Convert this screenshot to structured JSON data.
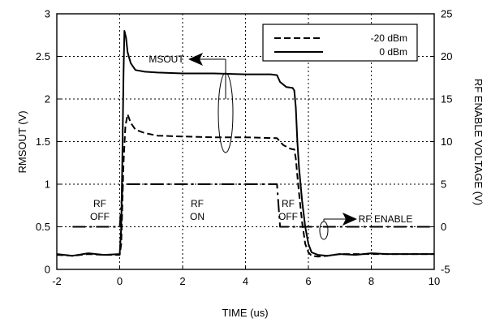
{
  "chart_data": {
    "type": "line",
    "title": "",
    "xlabel": "TIME (us)",
    "ylabel_left": "RMSOUT (V)",
    "ylabel_right": "RF ENABLE VOLTAGE (V)",
    "xlim": [
      -2,
      10
    ],
    "ylim_left": [
      0,
      3
    ],
    "ylim_right": [
      -5,
      25
    ],
    "x_ticks": [
      -2,
      0,
      2,
      4,
      6,
      8,
      10
    ],
    "x_tick_labels": [
      "-2",
      "0",
      "2",
      "4",
      "6",
      "8",
      "10"
    ],
    "y_left_ticks": [
      0,
      0.5,
      1,
      1.5,
      2,
      2.5,
      3
    ],
    "y_left_tick_labels": [
      "0",
      "0.5",
      "1",
      "1.5",
      "2",
      "2.5",
      "3"
    ],
    "y_right_ticks": [
      -5,
      0,
      5,
      10,
      15,
      20,
      25
    ],
    "y_right_tick_labels": [
      "-5",
      "0",
      "5",
      "10",
      "15",
      "20",
      "25"
    ],
    "grid": true,
    "legend_position": "top-right",
    "series": [
      {
        "name": "-20 dBm",
        "axis": "left",
        "style": "dashed",
        "x": [
          -2,
          -1.5,
          -1,
          -0.5,
          0,
          0.05,
          0.08,
          0.12,
          0.18,
          0.25,
          0.35,
          0.5,
          0.8,
          1.2,
          2,
          3,
          4,
          5,
          5.1,
          5.2,
          5.4,
          5.5,
          5.55,
          5.6,
          5.65,
          5.7,
          5.8,
          5.9,
          6,
          6.1,
          6.3,
          6.6,
          7,
          7.5,
          8,
          8.5,
          9,
          9.5,
          10
        ],
        "y": [
          0.17,
          0.16,
          0.18,
          0.17,
          0.17,
          0.3,
          0.7,
          1.25,
          1.68,
          1.82,
          1.72,
          1.64,
          1.6,
          1.57,
          1.56,
          1.55,
          1.55,
          1.54,
          1.5,
          1.46,
          1.42,
          1.41,
          1.41,
          1.3,
          1.1,
          0.9,
          0.55,
          0.3,
          0.2,
          0.16,
          0.15,
          0.16,
          0.18,
          0.18,
          0.18,
          0.18,
          0.18,
          0.18,
          0.18
        ]
      },
      {
        "name": "0 dBm",
        "axis": "left",
        "style": "solid",
        "x": [
          -2,
          -1.5,
          -1,
          -0.5,
          0,
          0.05,
          0.08,
          0.12,
          0.15,
          0.2,
          0.25,
          0.35,
          0.5,
          0.8,
          1.2,
          2,
          3,
          4,
          4.8,
          5,
          5.1,
          5.3,
          5.5,
          5.55,
          5.6,
          5.65,
          5.7,
          5.8,
          5.9,
          6,
          6.1,
          6.3,
          6.6,
          7,
          7.5,
          8,
          8.5,
          9,
          9.5,
          10
        ],
        "y": [
          0.18,
          0.16,
          0.19,
          0.17,
          0.18,
          0.5,
          1.2,
          2.3,
          2.8,
          2.72,
          2.55,
          2.42,
          2.34,
          2.32,
          2.31,
          2.3,
          2.3,
          2.29,
          2.29,
          2.28,
          2.2,
          2.14,
          2.13,
          2.1,
          1.9,
          1.5,
          1.2,
          0.8,
          0.5,
          0.3,
          0.2,
          0.17,
          0.16,
          0.18,
          0.17,
          0.19,
          0.18,
          0.18,
          0.18,
          0.18
        ]
      },
      {
        "name": "RF ENABLE",
        "axis": "right",
        "style": "dashdot",
        "x": [
          -1.5,
          0,
          0.05,
          0.1,
          5,
          5.05,
          5.1,
          10
        ],
        "y": [
          0,
          0,
          2.5,
          5,
          5,
          2.5,
          0,
          0
        ]
      }
    ],
    "annotations": [
      {
        "text": "MSOUT",
        "arrow": "left"
      },
      {
        "text": "RF ENABLE",
        "arrow": "right"
      },
      {
        "text_lines": [
          "RF",
          "OFF"
        ],
        "at": [
          -1.1,
          0.875
        ]
      },
      {
        "text_lines": [
          "RF",
          "ON"
        ],
        "at": [
          2.5,
          0.875
        ]
      },
      {
        "text_lines": [
          "RF",
          "OFF"
        ],
        "at": [
          5.3,
          0.875
        ]
      }
    ]
  }
}
